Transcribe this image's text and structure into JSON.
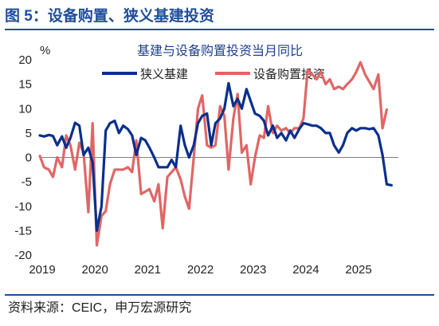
{
  "figure_title": "图 5：设备购置、狭义基建投资",
  "source_note": "资料来源：CEIC，申万宏源研究",
  "chart_data": {
    "type": "line",
    "title": "基建与设备购置投资当月同比",
    "ylabel": "%",
    "xlabel": "",
    "ylim": [
      -20,
      20
    ],
    "y_ticks": [
      20,
      15,
      10,
      5,
      0,
      -5,
      -10,
      -15,
      -20
    ],
    "x_ticks": [
      "2019",
      "2020",
      "2021",
      "2022",
      "2023",
      "2024",
      "2025"
    ],
    "legend_position": "top-center",
    "grid": false,
    "series": [
      {
        "name": "狭义基建",
        "color": "#0a2f8c",
        "points": [
          [
            2019.0,
            4.5
          ],
          [
            2019.08,
            4.3
          ],
          [
            2019.17,
            4.6
          ],
          [
            2019.25,
            4.4
          ],
          [
            2019.33,
            2.5
          ],
          [
            2019.42,
            4.3
          ],
          [
            2019.5,
            2.0
          ],
          [
            2019.58,
            4.0
          ],
          [
            2019.67,
            7.1
          ],
          [
            2019.75,
            6.5
          ],
          [
            2019.83,
            0.5
          ],
          [
            2019.92,
            2.0
          ],
          [
            2020.0,
            -1.0
          ],
          [
            2020.08,
            -15.0
          ],
          [
            2020.17,
            -10.0
          ],
          [
            2020.25,
            5.5
          ],
          [
            2020.33,
            7.0
          ],
          [
            2020.42,
            7.5
          ],
          [
            2020.5,
            5.0
          ],
          [
            2020.58,
            6.5
          ],
          [
            2020.67,
            5.8
          ],
          [
            2020.75,
            4.5
          ],
          [
            2020.83,
            0.5
          ],
          [
            2020.92,
            4.0
          ],
          [
            2021.0,
            3.5
          ],
          [
            2021.08,
            2.0
          ],
          [
            2021.17,
            0.0
          ],
          [
            2021.25,
            -2.0
          ],
          [
            2021.33,
            -2.0
          ],
          [
            2021.42,
            -2.0
          ],
          [
            2021.5,
            -0.5
          ],
          [
            2021.58,
            -2.0
          ],
          [
            2021.67,
            6.5
          ],
          [
            2021.75,
            2.5
          ],
          [
            2021.83,
            0.0
          ],
          [
            2021.92,
            2.5
          ],
          [
            2022.0,
            7.0
          ],
          [
            2022.08,
            8.5
          ],
          [
            2022.17,
            9.0
          ],
          [
            2022.25,
            2.5
          ],
          [
            2022.33,
            7.0
          ],
          [
            2022.42,
            8.0
          ],
          [
            2022.5,
            10.0
          ],
          [
            2022.58,
            15.2
          ],
          [
            2022.67,
            10.5
          ],
          [
            2022.75,
            12.0
          ],
          [
            2022.83,
            10.0
          ],
          [
            2022.92,
            14.0
          ],
          [
            2023.0,
            11.5
          ],
          [
            2023.08,
            9.0
          ],
          [
            2023.17,
            8.5
          ],
          [
            2023.25,
            7.5
          ],
          [
            2023.33,
            4.5
          ],
          [
            2023.42,
            6.5
          ],
          [
            2023.5,
            4.0
          ],
          [
            2023.58,
            5.0
          ],
          [
            2023.67,
            3.5
          ],
          [
            2023.75,
            5.5
          ],
          [
            2023.83,
            4.0
          ],
          [
            2023.92,
            5.8
          ],
          [
            2024.0,
            7.0
          ],
          [
            2024.08,
            6.8
          ],
          [
            2024.17,
            6.5
          ],
          [
            2024.25,
            6.5
          ],
          [
            2024.33,
            6.0
          ],
          [
            2024.42,
            5.0
          ],
          [
            2024.5,
            5.0
          ],
          [
            2024.58,
            2.5
          ],
          [
            2024.67,
            1.0
          ],
          [
            2024.75,
            2.5
          ],
          [
            2024.83,
            5.0
          ],
          [
            2024.92,
            6.0
          ],
          [
            2025.0,
            5.5
          ],
          [
            2025.08,
            6.0
          ],
          [
            2025.17,
            6.0
          ],
          [
            2025.25,
            5.8
          ],
          [
            2025.33,
            6.0
          ],
          [
            2025.42,
            4.5
          ],
          [
            2025.5,
            0.5
          ],
          [
            2025.58,
            -5.5
          ],
          [
            2025.67,
            -5.7
          ]
        ]
      },
      {
        "name": "设备购置投资",
        "color": "#e06666",
        "points": [
          [
            2019.0,
            0.3
          ],
          [
            2019.08,
            -2.0
          ],
          [
            2019.17,
            -2.5
          ],
          [
            2019.25,
            -4.0
          ],
          [
            2019.33,
            0.0
          ],
          [
            2019.42,
            -2.0
          ],
          [
            2019.5,
            4.5
          ],
          [
            2019.58,
            2.5
          ],
          [
            2019.67,
            -2.5
          ],
          [
            2019.75,
            3.0
          ],
          [
            2019.83,
            1.0
          ],
          [
            2019.92,
            -11.2
          ],
          [
            2020.0,
            7.0
          ],
          [
            2020.08,
            -18.0
          ],
          [
            2020.17,
            -12.0
          ],
          [
            2020.25,
            -11.0
          ],
          [
            2020.33,
            -5.5
          ],
          [
            2020.42,
            -2.5
          ],
          [
            2020.5,
            -2.5
          ],
          [
            2020.58,
            -2.5
          ],
          [
            2020.67,
            -2.0
          ],
          [
            2020.75,
            -3.0
          ],
          [
            2020.83,
            3.5
          ],
          [
            2020.92,
            -7.5
          ],
          [
            2021.0,
            -7.0
          ],
          [
            2021.08,
            -6.5
          ],
          [
            2021.17,
            -9.0
          ],
          [
            2021.25,
            -5.5
          ],
          [
            2021.33,
            -14.5
          ],
          [
            2021.42,
            -4.0
          ],
          [
            2021.5,
            -3.0
          ],
          [
            2021.58,
            -2.0
          ],
          [
            2021.67,
            -4.5
          ],
          [
            2021.75,
            -8.0
          ],
          [
            2021.83,
            -10.5
          ],
          [
            2021.92,
            0.0
          ],
          [
            2022.0,
            10.0
          ],
          [
            2022.08,
            12.7
          ],
          [
            2022.17,
            2.5
          ],
          [
            2022.25,
            2.0
          ],
          [
            2022.33,
            2.5
          ],
          [
            2022.42,
            10.5
          ],
          [
            2022.5,
            8.5
          ],
          [
            2022.58,
            -2.5
          ],
          [
            2022.67,
            8.0
          ],
          [
            2022.75,
            13.0
          ],
          [
            2022.83,
            1.0
          ],
          [
            2022.92,
            2.5
          ],
          [
            2023.0,
            -5.5
          ],
          [
            2023.08,
            0.0
          ],
          [
            2023.17,
            4.5
          ],
          [
            2023.25,
            4.0
          ],
          [
            2023.33,
            10.5
          ],
          [
            2023.42,
            5.0
          ],
          [
            2023.5,
            6.5
          ],
          [
            2023.58,
            5.5
          ],
          [
            2023.67,
            6.0
          ],
          [
            2023.75,
            5.0
          ],
          [
            2023.83,
            6.0
          ],
          [
            2023.92,
            6.0
          ],
          [
            2024.0,
            8.0
          ],
          [
            2024.08,
            18.0
          ],
          [
            2024.17,
            17.0
          ],
          [
            2024.25,
            16.0
          ],
          [
            2024.33,
            17.5
          ],
          [
            2024.42,
            15.0
          ],
          [
            2024.5,
            16.0
          ],
          [
            2024.58,
            14.0
          ],
          [
            2024.67,
            14.5
          ],
          [
            2024.75,
            14.0
          ],
          [
            2024.83,
            15.0
          ],
          [
            2024.92,
            16.0
          ],
          [
            2025.0,
            17.5
          ],
          [
            2025.08,
            19.5
          ],
          [
            2025.17,
            17.0
          ],
          [
            2025.25,
            15.5
          ],
          [
            2025.33,
            14.0
          ],
          [
            2025.42,
            17.0
          ],
          [
            2025.5,
            6.0
          ],
          [
            2025.58,
            9.8
          ]
        ]
      }
    ]
  }
}
